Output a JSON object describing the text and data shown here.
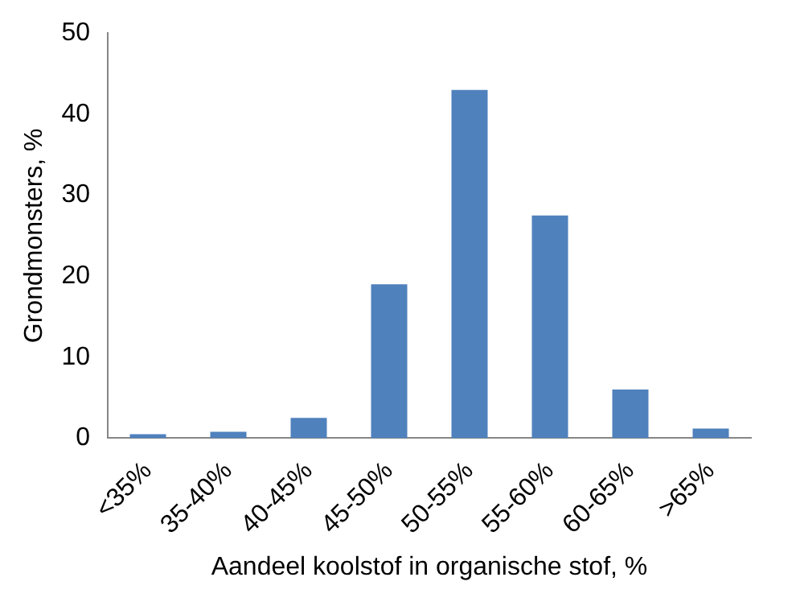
{
  "chart_data": {
    "type": "bar",
    "xlabel": "Aandeel koolstof in organische stof, %",
    "ylabel": "Grondmonsters, %",
    "categories": [
      "<35%",
      "35-40%",
      "40-45%",
      "45-50%",
      "50-55%",
      "55-60%",
      "60-65%",
      ">65%"
    ],
    "values": [
      0.5,
      0.8,
      2.5,
      19,
      43,
      27.5,
      6,
      1.2
    ],
    "color": "#4f81bd",
    "ylim": [
      0,
      50
    ],
    "yticks": [
      0,
      10,
      20,
      30,
      40,
      50
    ],
    "grid": false,
    "legend": false
  }
}
